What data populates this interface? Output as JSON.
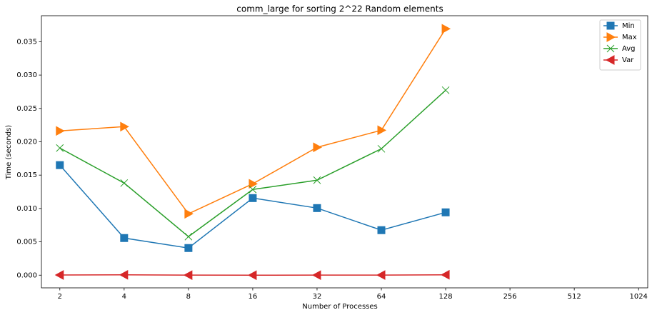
{
  "chart_data": {
    "type": "line",
    "title": "comm_large for sorting 2^22 Random elements",
    "xlabel": "Number of Processes",
    "ylabel": "Time (seconds)",
    "x": [
      2,
      4,
      8,
      16,
      32,
      64,
      128
    ],
    "xscale": "log2",
    "xlim": [
      1.64,
      1130
    ],
    "xticks": [
      2,
      4,
      8,
      16,
      32,
      64,
      128,
      256,
      512,
      1024
    ],
    "ylim": [
      -0.0019,
      0.0389
    ],
    "yticks": [
      {
        "value": 0,
        "label": "0.000"
      },
      {
        "value": 0.005,
        "label": "0.005"
      },
      {
        "value": 0.01,
        "label": "0.010"
      },
      {
        "value": 0.015,
        "label": "0.015"
      },
      {
        "value": 0.02,
        "label": "0.020"
      },
      {
        "value": 0.025,
        "label": "0.025"
      },
      {
        "value": 0.03,
        "label": "0.030"
      },
      {
        "value": 0.035,
        "label": "0.035"
      }
    ],
    "legend": "upper right",
    "series": [
      {
        "name": "Min",
        "color": "#1f77b4",
        "marker": "square",
        "values": [
          0.0165,
          0.00557,
          0.00407,
          0.01156,
          0.01006,
          0.00675,
          0.00942
        ]
      },
      {
        "name": "Max",
        "color": "#ff7f0e",
        "marker": "triangle-right",
        "values": [
          0.02163,
          0.02227,
          0.00921,
          0.0137,
          0.01917,
          0.02173,
          0.03694
        ]
      },
      {
        "name": "Avg",
        "color": "#2ca02c",
        "marker": "x",
        "values": [
          0.01906,
          0.01381,
          0.00578,
          0.01285,
          0.01424,
          0.01895,
          0.02773
        ]
      },
      {
        "name": "Var",
        "color": "#d62728",
        "marker": "triangle-left",
        "values": [
          3e-05,
          5e-05,
          1e-05,
          0.0,
          1e-05,
          2e-05,
          6e-05
        ]
      }
    ]
  }
}
